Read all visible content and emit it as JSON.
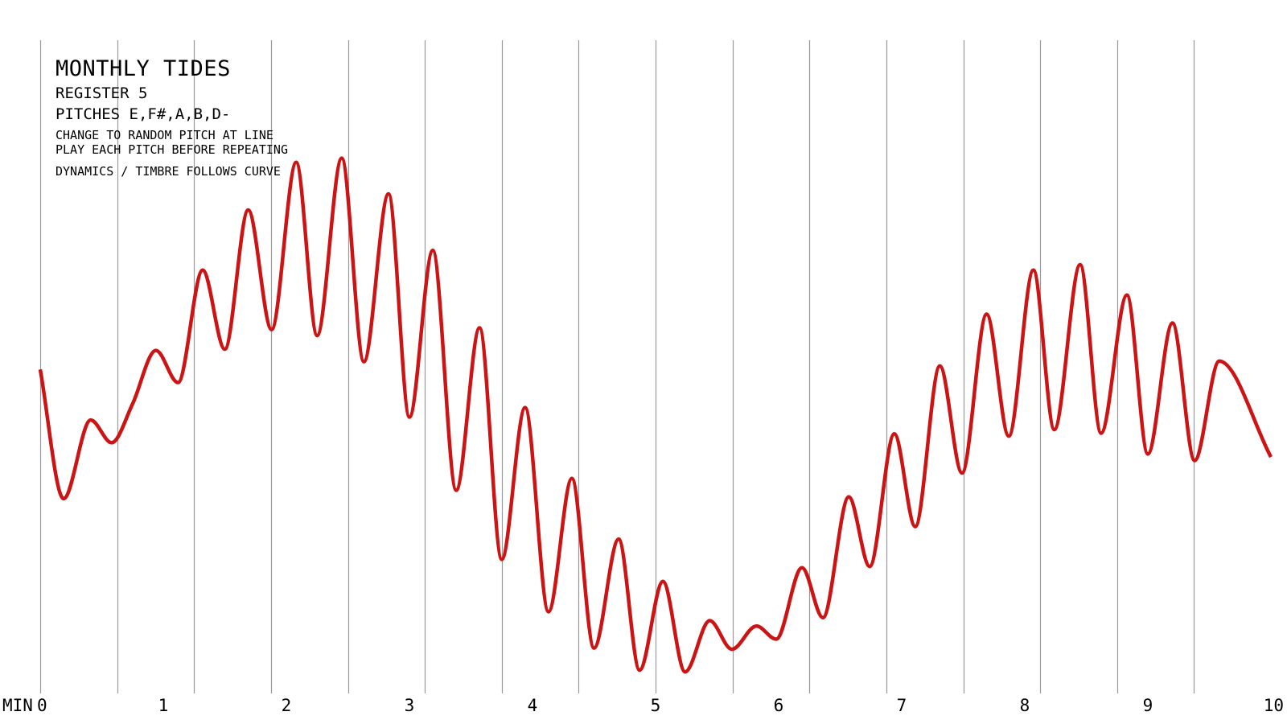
{
  "score": {
    "title": "MONTHLY TIDES",
    "register": "REGISTER 5",
    "pitches": "PITCHES E,F#,A,B,D-",
    "instruction_1": "CHANGE TO RANDOM PITCH AT LINE",
    "instruction_2": "PLAY EACH PITCH BEFORE REPEATING",
    "instruction_3": "DYNAMICS / TIMBRE FOLLOWS CURVE"
  },
  "chart_data": {
    "type": "line",
    "title": "MONTHLY TIDES",
    "xlabel": "MIN",
    "ylabel": "",
    "xlim": [
      0,
      10
    ],
    "x_ticks": [
      0,
      1,
      2,
      3,
      4,
      5,
      6,
      7,
      8,
      9,
      10
    ],
    "x_tick_labels": [
      "0",
      "1",
      "2",
      "3",
      "4",
      "5",
      "6",
      "7",
      "8",
      "9",
      "10"
    ],
    "y_axis_visible": false,
    "ylim": [
      0,
      1
    ],
    "pitch_change_lines_min": [
      0,
      0.625,
      1.25,
      1.875,
      2.5,
      3.125,
      3.75,
      4.375,
      5.0,
      5.625,
      6.25,
      6.875,
      7.5,
      8.125,
      8.75,
      9.375
    ],
    "grid": false,
    "line_color": "#cc1414",
    "guide_color": "#999999",
    "series": [
      {
        "values": [
          [
            0.0,
            0.528
          ],
          [
            0.19,
            0.311
          ],
          [
            0.41,
            0.443
          ],
          [
            0.58,
            0.405
          ],
          [
            0.75,
            0.47
          ],
          [
            0.94,
            0.56
          ],
          [
            1.12,
            0.506
          ],
          [
            1.32,
            0.695
          ],
          [
            1.5,
            0.562
          ],
          [
            1.69,
            0.796
          ],
          [
            1.88,
            0.595
          ],
          [
            2.08,
            0.876
          ],
          [
            2.25,
            0.585
          ],
          [
            2.45,
            0.883
          ],
          [
            2.63,
            0.541
          ],
          [
            2.83,
            0.823
          ],
          [
            3.0,
            0.448
          ],
          [
            3.19,
            0.728
          ],
          [
            3.38,
            0.325
          ],
          [
            3.57,
            0.598
          ],
          [
            3.75,
            0.209
          ],
          [
            3.94,
            0.464
          ],
          [
            4.13,
            0.121
          ],
          [
            4.32,
            0.345
          ],
          [
            4.5,
            0.06
          ],
          [
            4.7,
            0.243
          ],
          [
            4.87,
            0.023
          ],
          [
            5.06,
            0.172
          ],
          [
            5.24,
            0.02
          ],
          [
            5.44,
            0.106
          ],
          [
            5.62,
            0.058
          ],
          [
            5.82,
            0.097
          ],
          [
            5.98,
            0.075
          ],
          [
            6.19,
            0.195
          ],
          [
            6.36,
            0.111
          ],
          [
            6.57,
            0.314
          ],
          [
            6.74,
            0.197
          ],
          [
            6.94,
            0.42
          ],
          [
            7.11,
            0.264
          ],
          [
            7.31,
            0.534
          ],
          [
            7.49,
            0.354
          ],
          [
            7.69,
            0.621
          ],
          [
            7.87,
            0.416
          ],
          [
            8.07,
            0.695
          ],
          [
            8.24,
            0.427
          ],
          [
            8.45,
            0.704
          ],
          [
            8.62,
            0.421
          ],
          [
            8.83,
            0.653
          ],
          [
            9.0,
            0.386
          ],
          [
            9.2,
            0.606
          ],
          [
            9.38,
            0.375
          ],
          [
            9.58,
            0.542
          ],
          [
            10.0,
            0.381
          ]
        ]
      }
    ]
  }
}
